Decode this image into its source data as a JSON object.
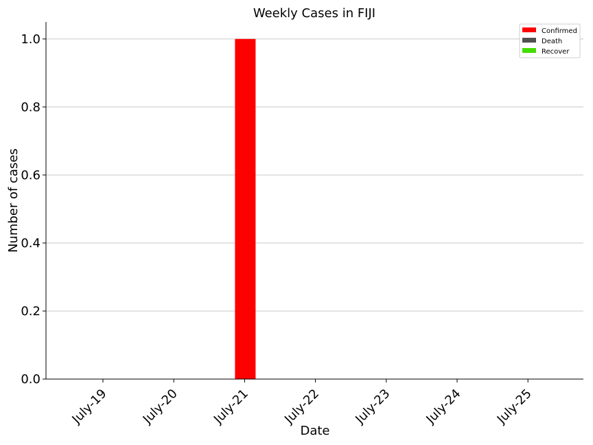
{
  "chart_data": {
    "type": "bar",
    "title": "Weekly Cases in FIJI",
    "xlabel": "Date",
    "ylabel": "Number of cases",
    "categories": [
      "July-19",
      "July-20",
      "July-21",
      "July-22",
      "July-23",
      "July-24",
      "July-25"
    ],
    "series": [
      {
        "name": "Confirmed",
        "color": "#ff0000",
        "values": [
          0,
          0,
          1,
          0,
          0,
          0,
          0
        ]
      },
      {
        "name": "Death",
        "color": "#505050",
        "values": [
          0,
          0,
          0,
          0,
          0,
          0,
          0
        ]
      },
      {
        "name": "Recover",
        "color": "#44dd00",
        "values": [
          0,
          0,
          0,
          0,
          0,
          0,
          0
        ]
      }
    ],
    "ylim": [
      0,
      1.05
    ],
    "yticks": [
      "0.0",
      "0.2",
      "0.4",
      "0.6",
      "0.8",
      "1.0"
    ],
    "grid": "horizontal",
    "legend_position": "top-right"
  }
}
